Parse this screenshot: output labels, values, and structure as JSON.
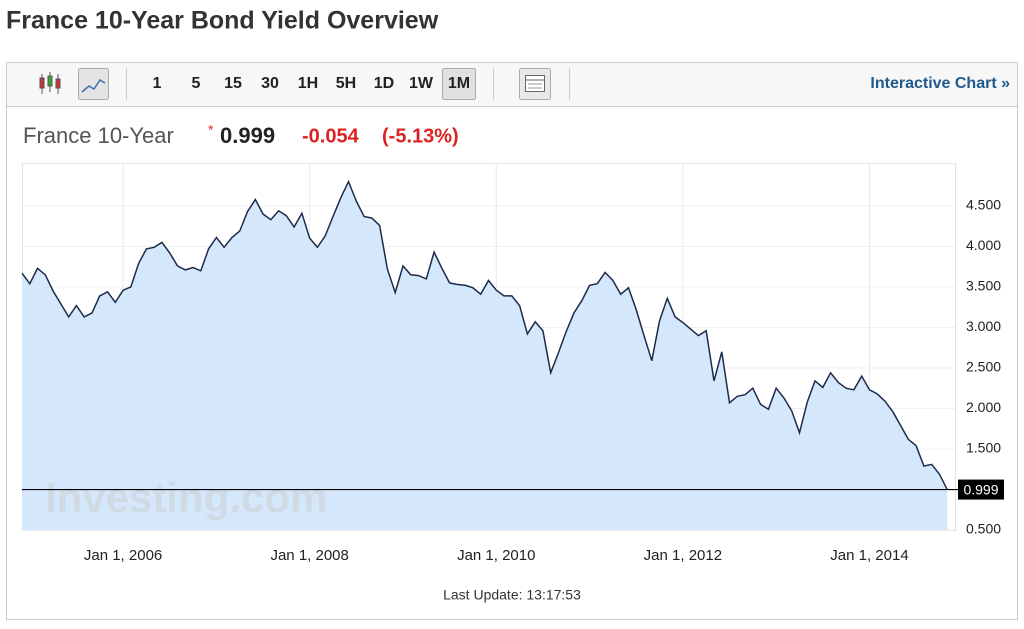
{
  "page": {
    "title": "France 10-Year Bond Yield Overview",
    "toolbar": {
      "intervals": [
        "1",
        "5",
        "15",
        "30",
        "1H",
        "5H",
        "1D",
        "1W",
        "1M"
      ],
      "link": "Interactive Chart »"
    },
    "footer": "Last Update: 13:17:53"
  },
  "chart_data": {
    "type": "area",
    "instrument": "France 10-Year",
    "last_value": 0.999,
    "change": -0.054,
    "change_percent": "(-5.13%)",
    "watermark": "Investing.com",
    "color": "#1e2a4a",
    "fill": "#d5e7fb",
    "grid": true,
    "xlim": [
      "2004-12-01",
      "2014-12-01"
    ],
    "xticks": [
      {
        "value": "2006-01-01",
        "label": "Jan 1, 2006"
      },
      {
        "value": "2008-01-01",
        "label": "Jan 1, 2008"
      },
      {
        "value": "2010-01-01",
        "label": "Jan 1, 2010"
      },
      {
        "value": "2012-01-01",
        "label": "Jan 1, 2012"
      },
      {
        "value": "2014-01-01",
        "label": "Jan 1, 2014"
      }
    ],
    "ylim": [
      0.5,
      5.03
    ],
    "yticks": [
      {
        "value": 0.5,
        "label": "0.500"
      },
      {
        "value": 1.5,
        "label": "1.500"
      },
      {
        "value": 2,
        "label": "2.000"
      },
      {
        "value": 2.5,
        "label": "2.500"
      },
      {
        "value": 3,
        "label": "3.000"
      },
      {
        "value": 3.5,
        "label": "3.500"
      },
      {
        "value": 4,
        "label": "4.000"
      },
      {
        "value": 4.5,
        "label": "4.500"
      }
    ],
    "x": [
      "2004-12-01",
      "2005-01-01",
      "2005-02-01",
      "2005-03-01",
      "2005-04-01",
      "2005-05-01",
      "2005-06-01",
      "2005-07-01",
      "2005-08-01",
      "2005-09-01",
      "2005-10-01",
      "2005-11-01",
      "2005-12-01",
      "2006-01-01",
      "2006-02-01",
      "2006-03-01",
      "2006-04-01",
      "2006-05-01",
      "2006-06-01",
      "2006-07-01",
      "2006-08-01",
      "2006-09-01",
      "2006-10-01",
      "2006-11-01",
      "2006-12-01",
      "2007-01-01",
      "2007-02-01",
      "2007-03-01",
      "2007-04-01",
      "2007-05-01",
      "2007-06-01",
      "2007-07-01",
      "2007-08-01",
      "2007-09-01",
      "2007-10-01",
      "2007-11-01",
      "2007-12-01",
      "2008-01-01",
      "2008-02-01",
      "2008-03-01",
      "2008-04-01",
      "2008-05-01",
      "2008-06-01",
      "2008-07-01",
      "2008-08-01",
      "2008-09-01",
      "2008-10-01",
      "2008-11-01",
      "2008-12-01",
      "2009-01-01",
      "2009-02-01",
      "2009-03-01",
      "2009-04-01",
      "2009-05-01",
      "2009-06-01",
      "2009-07-01",
      "2009-08-01",
      "2009-09-01",
      "2009-10-01",
      "2009-11-01",
      "2009-12-01",
      "2010-01-01",
      "2010-02-01",
      "2010-03-01",
      "2010-04-01",
      "2010-05-01",
      "2010-06-01",
      "2010-07-01",
      "2010-08-01",
      "2010-09-01",
      "2010-10-01",
      "2010-11-01",
      "2010-12-01",
      "2011-01-01",
      "2011-02-01",
      "2011-03-01",
      "2011-04-01",
      "2011-05-01",
      "2011-06-01",
      "2011-07-01",
      "2011-08-01",
      "2011-09-01",
      "2011-10-01",
      "2011-11-01",
      "2011-12-01",
      "2012-01-01",
      "2012-02-01",
      "2012-03-01",
      "2012-04-01",
      "2012-05-01",
      "2012-06-01",
      "2012-07-01",
      "2012-08-01",
      "2012-09-01",
      "2012-10-01",
      "2012-11-01",
      "2012-12-01",
      "2013-01-01",
      "2013-02-01",
      "2013-03-01",
      "2013-04-01",
      "2013-05-01",
      "2013-06-01",
      "2013-07-01",
      "2013-08-01",
      "2013-09-01",
      "2013-10-01",
      "2013-11-01",
      "2013-12-01",
      "2014-01-01",
      "2014-02-01",
      "2014-03-01",
      "2014-04-01",
      "2014-05-01",
      "2014-06-01",
      "2014-07-01",
      "2014-08-01",
      "2014-09-01",
      "2014-10-01",
      "2014-11-01"
    ],
    "values": [
      3.67,
      3.54,
      3.73,
      3.65,
      3.45,
      3.29,
      3.13,
      3.27,
      3.13,
      3.18,
      3.39,
      3.44,
      3.31,
      3.46,
      3.5,
      3.79,
      3.97,
      3.99,
      4.05,
      3.92,
      3.76,
      3.71,
      3.74,
      3.7,
      3.97,
      4.11,
      3.99,
      4.11,
      4.19,
      4.43,
      4.58,
      4.4,
      4.33,
      4.44,
      4.38,
      4.24,
      4.41,
      4.1,
      3.99,
      4.13,
      4.37,
      4.6,
      4.8,
      4.56,
      4.37,
      4.35,
      4.26,
      3.72,
      3.43,
      3.76,
      3.65,
      3.64,
      3.6,
      3.93,
      3.73,
      3.55,
      3.53,
      3.52,
      3.49,
      3.41,
      3.58,
      3.46,
      3.39,
      3.39,
      3.27,
      2.92,
      3.07,
      2.96,
      2.44,
      2.69,
      2.95,
      3.18,
      3.33,
      3.52,
      3.54,
      3.68,
      3.58,
      3.41,
      3.49,
      3.22,
      2.9,
      2.59,
      3.08,
      3.36,
      3.13,
      3.06,
      2.98,
      2.9,
      2.96,
      2.34,
      2.7,
      2.07,
      2.15,
      2.17,
      2.25,
      2.05,
      1.99,
      2.25,
      2.13,
      1.97,
      1.7,
      2.08,
      2.34,
      2.26,
      2.44,
      2.32,
      2.25,
      2.23,
      2.4,
      2.23,
      2.18,
      2.09,
      1.96,
      1.79,
      1.62,
      1.54,
      1.29,
      1.31,
      1.19,
      0.999
    ]
  }
}
